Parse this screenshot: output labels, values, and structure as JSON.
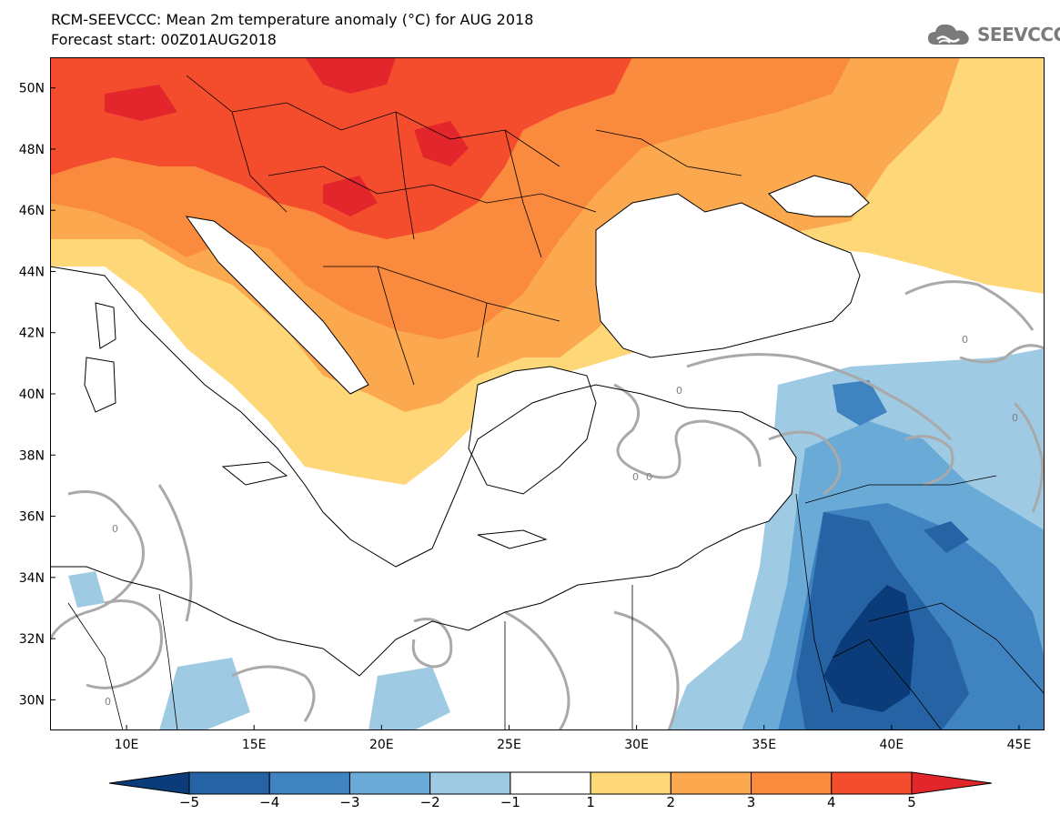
{
  "header": {
    "title": "RCM-SEEVCCC: Mean 2m temperature anomaly (°C) for AUG 2018",
    "subtitle": "Forecast start: 00Z01AUG2018",
    "logo_text": "SEEVCCC",
    "logo_icon": "cloud-icon"
  },
  "map": {
    "lon_labels": [
      "10E",
      "15E",
      "20E",
      "25E",
      "30E",
      "35E",
      "40E",
      "45E"
    ],
    "lat_labels": [
      "50N",
      "48N",
      "46N",
      "44N",
      "42N",
      "40N",
      "38N",
      "36N",
      "34N",
      "32N",
      "30N"
    ],
    "lon_range": [
      7,
      46
    ],
    "lat_range": [
      29,
      51
    ],
    "contour_label": "0",
    "field_colors": {
      "band_4_5": "#f44d2d",
      "band_5_plus": "#e3262c",
      "band_3_4": "#f98a3e",
      "band_2_3": "#fba84e",
      "band_1_2": "#fdd778",
      "neutral": "#ffffff",
      "band_m2_m1": "#9fcae3",
      "band_m3_m2": "#6aaad6",
      "band_m4_m3": "#3f83c0",
      "band_m5_m4": "#2563a5",
      "band_below_m5": "#0b3c79",
      "zero_contour": "#a9a9a9",
      "coastline": "#000000"
    }
  },
  "colorbar": {
    "labels": [
      "−5",
      "−4",
      "−3",
      "−2",
      "−1",
      "1",
      "2",
      "3",
      "4",
      "5"
    ],
    "colors": [
      "#0b3c79",
      "#2563a5",
      "#3f83c0",
      "#6aaad6",
      "#9fcae3",
      "#ffffff",
      "#fdd778",
      "#fba84e",
      "#f98a3e",
      "#f44d2d",
      "#e3262c"
    ]
  }
}
